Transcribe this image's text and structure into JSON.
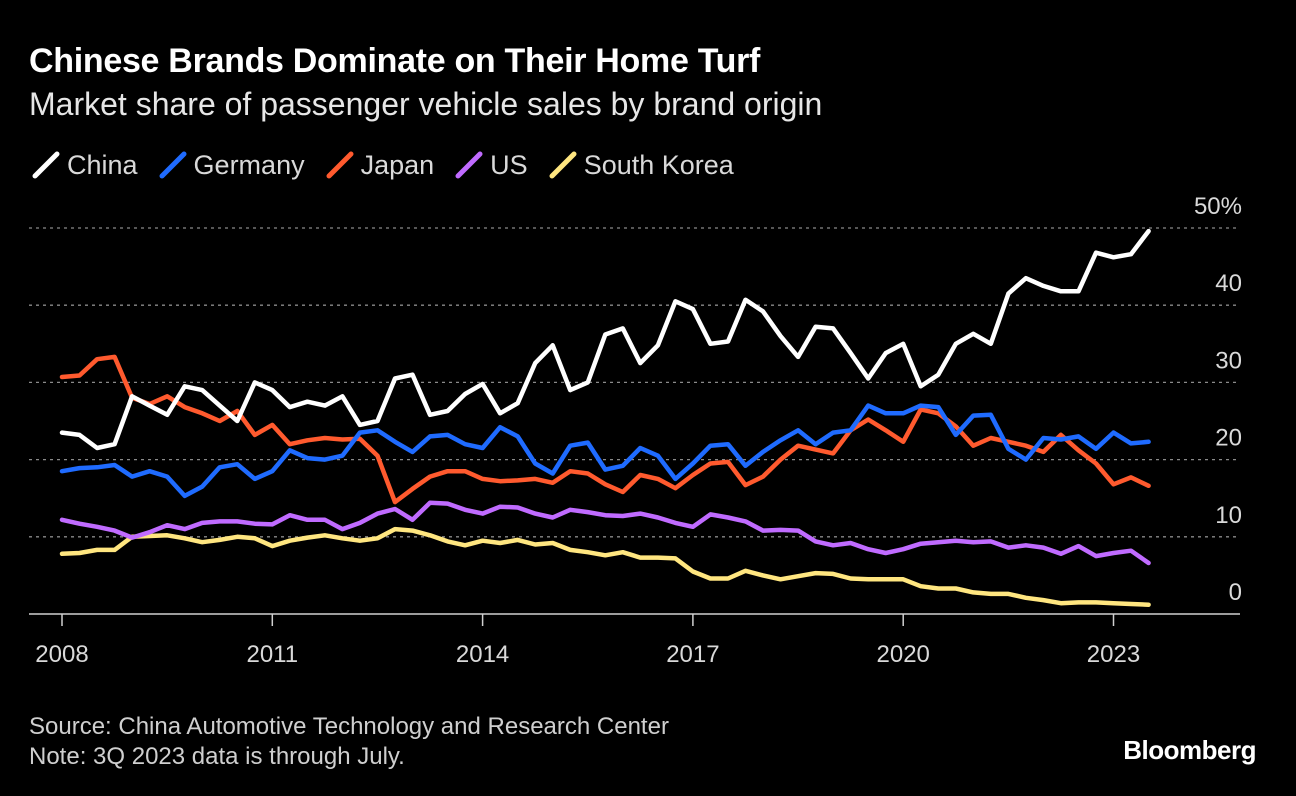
{
  "title": "Chinese Brands Dominate on Their Home Turf",
  "subtitle": "Market share of passenger vehicle sales by brand origin",
  "source": "Source: China Automotive Technology and Research Center",
  "note": "Note: 3Q 2023 data is through July.",
  "logo": "Bloomberg",
  "chart_data": {
    "type": "line",
    "ylim": [
      0,
      50
    ],
    "xlim": [
      2007.6,
      2024.3
    ],
    "grid": true,
    "legend_position": "top-left",
    "y_ticks": [
      {
        "value": 0,
        "label": "0"
      },
      {
        "value": 10,
        "label": "10"
      },
      {
        "value": 20,
        "label": "20"
      },
      {
        "value": 30,
        "label": "30"
      },
      {
        "value": 40,
        "label": "40"
      },
      {
        "value": 50,
        "label": "50%"
      }
    ],
    "x_ticks": [
      {
        "value": 2008,
        "label": "2008"
      },
      {
        "value": 2011,
        "label": "2011"
      },
      {
        "value": 2014,
        "label": "2014"
      },
      {
        "value": 2017,
        "label": "2017"
      },
      {
        "value": 2020,
        "label": "2020"
      },
      {
        "value": 2023,
        "label": "2023"
      }
    ],
    "x": [
      2008.0,
      2008.25,
      2008.5,
      2008.75,
      2009.0,
      2009.25,
      2009.5,
      2009.75,
      2010.0,
      2010.25,
      2010.5,
      2010.75,
      2011.0,
      2011.25,
      2011.5,
      2011.75,
      2012.0,
      2012.25,
      2012.5,
      2012.75,
      2013.0,
      2013.25,
      2013.5,
      2013.75,
      2014.0,
      2014.25,
      2014.5,
      2014.75,
      2015.0,
      2015.25,
      2015.5,
      2015.75,
      2016.0,
      2016.25,
      2016.5,
      2016.75,
      2017.0,
      2017.25,
      2017.5,
      2017.75,
      2018.0,
      2018.25,
      2018.5,
      2018.75,
      2019.0,
      2019.25,
      2019.5,
      2019.75,
      2020.0,
      2020.25,
      2020.5,
      2020.75,
      2021.0,
      2021.25,
      2021.5,
      2021.75,
      2022.0,
      2022.25,
      2022.5,
      2022.75,
      2023.0,
      2023.25,
      2023.5
    ],
    "series": [
      {
        "name": "China",
        "color": "#ffffff",
        "values": [
          23.5,
          23.2,
          21.5,
          22.0,
          28.2,
          27.0,
          25.8,
          29.5,
          29.0,
          27.0,
          25.0,
          30.0,
          29.0,
          26.8,
          27.5,
          27.0,
          28.2,
          24.5,
          25.0,
          30.5,
          31.0,
          25.8,
          26.3,
          28.5,
          29.8,
          26.0,
          27.3,
          32.5,
          34.8,
          29.0,
          30.0,
          36.2,
          37.0,
          32.5,
          34.8,
          40.5,
          39.5,
          35.0,
          35.3,
          40.7,
          39.2,
          36.0,
          33.3,
          37.2,
          37.0,
          33.8,
          30.5,
          33.8,
          35.0,
          29.5,
          31.0,
          35.0,
          36.3,
          35.0,
          41.5,
          43.5,
          42.5,
          41.8,
          41.8,
          46.8,
          46.2,
          46.6,
          49.6
        ]
      },
      {
        "name": "Germany",
        "color": "#1f6bff",
        "values": [
          18.5,
          18.9,
          19.0,
          19.3,
          17.8,
          18.5,
          17.8,
          15.3,
          16.5,
          19.0,
          19.4,
          17.5,
          18.5,
          21.2,
          20.2,
          20.0,
          20.5,
          23.5,
          23.8,
          22.3,
          21.0,
          23.0,
          23.2,
          22.0,
          21.5,
          24.2,
          23.0,
          19.5,
          18.2,
          21.8,
          22.2,
          18.7,
          19.2,
          21.5,
          20.5,
          17.5,
          19.5,
          21.8,
          22.0,
          19.2,
          21.0,
          22.5,
          23.8,
          22.0,
          23.5,
          23.8,
          27.0,
          26.0,
          26.0,
          27.0,
          26.8,
          23.2,
          25.7,
          25.8,
          21.4,
          20.0,
          22.8,
          22.6,
          23.0,
          21.4,
          23.5,
          22.1,
          22.3
        ]
      },
      {
        "name": "Japan",
        "color": "#ff5a2e",
        "values": [
          30.7,
          30.9,
          33.0,
          33.3,
          28.0,
          27.2,
          28.2,
          26.8,
          26.0,
          25.0,
          26.3,
          23.2,
          24.5,
          22.0,
          22.5,
          22.8,
          22.6,
          22.7,
          20.5,
          14.5,
          16.2,
          17.8,
          18.5,
          18.5,
          17.5,
          17.2,
          17.3,
          17.5,
          17.0,
          18.5,
          18.2,
          16.8,
          15.8,
          18.0,
          17.5,
          16.3,
          18.0,
          19.5,
          19.7,
          16.7,
          17.8,
          20.0,
          21.8,
          21.3,
          20.8,
          23.8,
          25.2,
          23.8,
          22.3,
          26.5,
          26.0,
          24.3,
          21.8,
          22.8,
          22.3,
          21.8,
          21.0,
          23.2,
          21.2,
          19.5,
          16.8,
          17.7,
          16.6
        ]
      },
      {
        "name": "US",
        "color": "#c06bff",
        "values": [
          12.2,
          11.7,
          11.3,
          10.8,
          9.9,
          10.6,
          11.5,
          11.0,
          11.8,
          12.0,
          12.0,
          11.7,
          11.6,
          12.8,
          12.2,
          12.2,
          11.0,
          11.8,
          13.0,
          13.6,
          12.2,
          14.4,
          14.3,
          13.5,
          13.0,
          13.9,
          13.8,
          13.0,
          12.5,
          13.5,
          13.2,
          12.8,
          12.7,
          13.0,
          12.5,
          11.8,
          11.3,
          12.9,
          12.5,
          12.0,
          10.8,
          10.9,
          10.8,
          9.4,
          8.9,
          9.2,
          8.4,
          7.9,
          8.4,
          9.1,
          9.3,
          9.5,
          9.3,
          9.4,
          8.6,
          8.9,
          8.6,
          7.8,
          8.8,
          7.5,
          7.9,
          8.2,
          6.6
        ]
      },
      {
        "name": "South Korea",
        "color": "#ffe680",
        "values": [
          7.8,
          7.9,
          8.3,
          8.3,
          10.0,
          10.1,
          10.2,
          9.8,
          9.3,
          9.6,
          10.0,
          9.8,
          8.8,
          9.5,
          9.9,
          10.2,
          9.8,
          9.5,
          9.8,
          11.0,
          10.8,
          10.2,
          9.4,
          8.9,
          9.5,
          9.2,
          9.6,
          9.0,
          9.2,
          8.3,
          8.0,
          7.6,
          8.0,
          7.3,
          7.3,
          7.2,
          5.5,
          4.6,
          4.6,
          5.6,
          5.0,
          4.5,
          4.9,
          5.3,
          5.2,
          4.6,
          4.5,
          4.5,
          4.5,
          3.6,
          3.3,
          3.3,
          2.8,
          2.6,
          2.6,
          2.1,
          1.8,
          1.4,
          1.5,
          1.5,
          1.4,
          1.3,
          1.2
        ]
      }
    ]
  }
}
